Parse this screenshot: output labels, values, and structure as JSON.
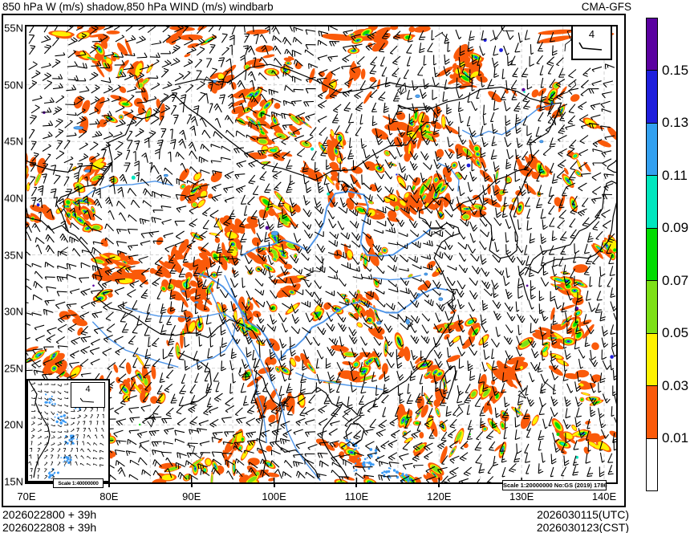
{
  "header": {
    "title": "850 hPa W (m/s) shadow,850 hPa WIND (m/s) windbarb",
    "model": "CMA-GFS"
  },
  "chart_data": {
    "type": "heatmap",
    "title": "850 hPa W (m/s) shadow,850 hPa WIND (m/s) windbarb",
    "model": "CMA-GFS",
    "shaded_variable": "850 hPa vertical velocity W (m/s)",
    "overlay": "850 hPa wind (m/s) windbarbs",
    "xlabel": "",
    "ylabel": "",
    "x_ticks": [
      "70E",
      "80E",
      "90E",
      "100E",
      "110E",
      "120E",
      "130E",
      "140E"
    ],
    "y_ticks": [
      "55N",
      "50N",
      "45N",
      "40N",
      "35N",
      "30N",
      "25N",
      "20N",
      "15N"
    ],
    "lon_range": [
      70,
      141.5
    ],
    "lat_range": [
      15,
      55
    ],
    "grid": "dashed 5-degree graticule",
    "colorbar": {
      "labels": [
        "0.15",
        "0.13",
        "0.11",
        "0.09",
        "0.07",
        "0.05",
        "0.03",
        "0.01"
      ],
      "levels": [
        0.01,
        0.03,
        0.05,
        0.07,
        0.09,
        0.11,
        0.13,
        0.15
      ],
      "colors_top_to_bottom": [
        "#5A00A0",
        "#1E1EDC",
        "#32A0F0",
        "#00E6BE",
        "#00DC00",
        "#7DE017",
        "#FEF100",
        "#FA5A0A",
        "#FFFFFF"
      ]
    },
    "windbarb_legend_value": "4",
    "legend_position": "right"
  },
  "map": {
    "scale_note": "Scale 1:20000000 No:GS (2019) 1786",
    "inset_scale_note": "Scale 1:40000000",
    "barb_legend_value": "4"
  },
  "footer": {
    "run_lines": [
      "2026022800 + 39h",
      "2026022808 + 39h"
    ],
    "valid_lines": [
      "2026030115(UTC)",
      "2026030123(CST)"
    ]
  }
}
